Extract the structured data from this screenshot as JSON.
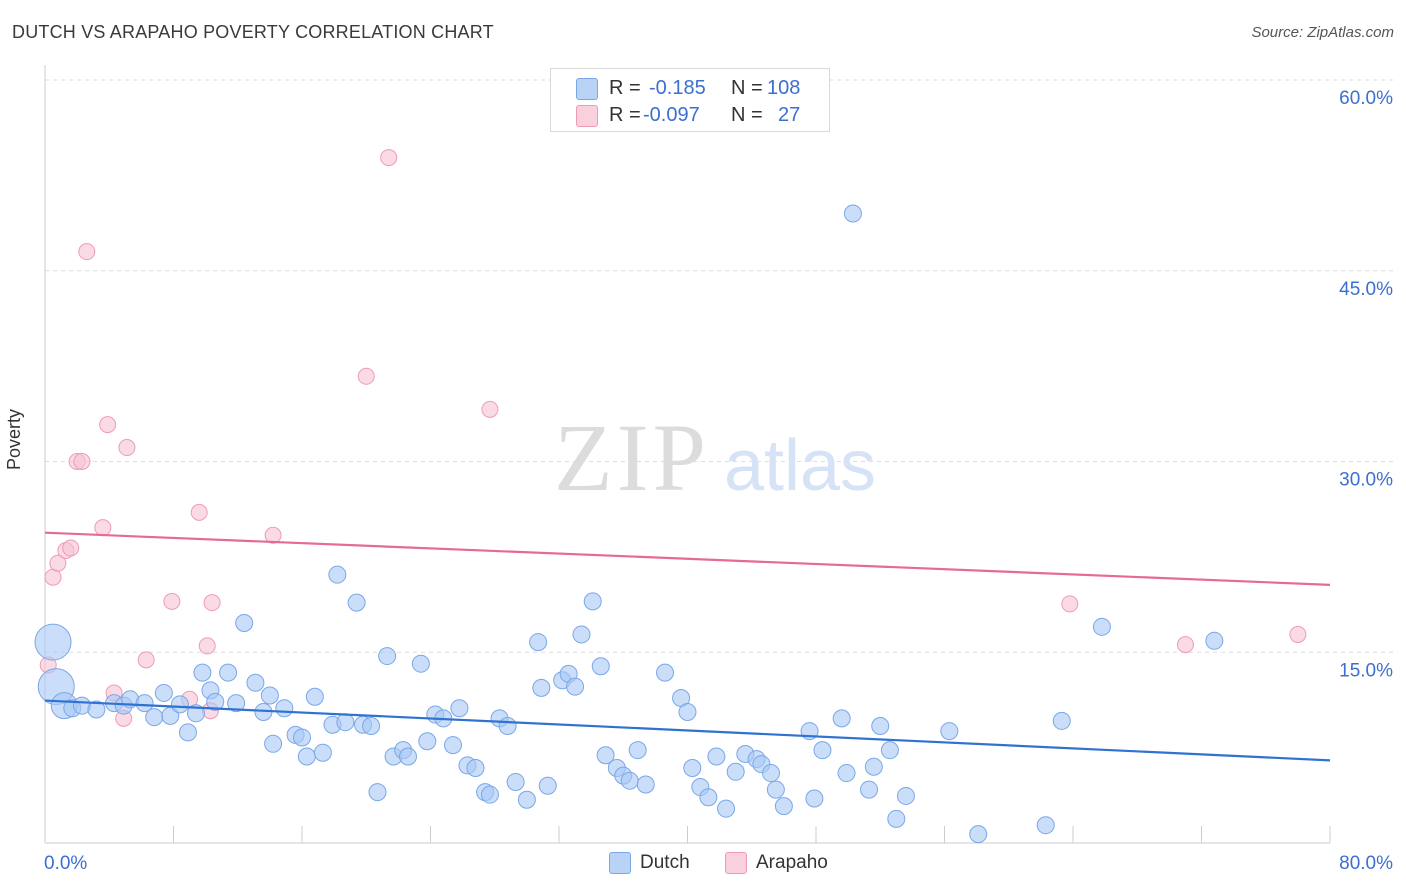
{
  "title": "DUTCH VS ARAPAHO POVERTY CORRELATION CHART",
  "source": "Source: ZipAtlas.com",
  "watermark": {
    "zip": "ZIP",
    "atlas": "atlas"
  },
  "colors": {
    "dutch_fill": "#a9c8f5",
    "dutch_stroke": "#7aa7e8",
    "dutch_line": "#2f72d0",
    "arapaho_fill": "#f7c3d3",
    "arapaho_stroke": "#ef9bb5",
    "arapaho_line": "#e56b93",
    "tick_label": "#3b6fd1",
    "grid": "#dddddd"
  },
  "legend": {
    "dutch": {
      "r_label": "R =",
      "r_value": "-0.185",
      "n_label": "N =",
      "n_value": "108"
    },
    "arapaho": {
      "r_label": "R =",
      "r_value": "-0.097",
      "n_label": "N =",
      "n_value": "27"
    }
  },
  "bottom_legend": {
    "dutch": "Dutch",
    "arapaho": "Arapaho"
  },
  "chart_data": {
    "type": "scatter",
    "title": "DUTCH VS ARAPAHO POVERTY CORRELATION CHART",
    "xlabel": "",
    "ylabel": "Poverty",
    "xlim": [
      0,
      80
    ],
    "ylim": [
      0,
      60
    ],
    "x_tick_labels": [
      "0.0%",
      "80.0%"
    ],
    "y_ticks": [
      15,
      30,
      45,
      60
    ],
    "y_tick_labels": [
      "15.0%",
      "30.0%",
      "45.0%",
      "60.0%"
    ],
    "grid": "horizontal dashed",
    "legend_position": "top-center",
    "series": [
      {
        "name": "Dutch",
        "trend": {
          "x": [
            0,
            80
          ],
          "y": [
            11.2,
            6.5
          ]
        },
        "points": [
          {
            "x": 0.5,
            "y": 15.8,
            "s": 3
          },
          {
            "x": 0.7,
            "y": 12.3,
            "s": 3
          },
          {
            "x": 1.2,
            "y": 10.8,
            "s": 2
          },
          {
            "x": 1.7,
            "y": 10.6,
            "s": 1
          },
          {
            "x": 2.3,
            "y": 10.8,
            "s": 1
          },
          {
            "x": 3.2,
            "y": 10.5,
            "s": 1
          },
          {
            "x": 4.3,
            "y": 11.0,
            "s": 1
          },
          {
            "x": 4.9,
            "y": 10.8,
            "s": 1
          },
          {
            "x": 5.3,
            "y": 11.3,
            "s": 1
          },
          {
            "x": 6.2,
            "y": 11.0,
            "s": 1
          },
          {
            "x": 6.8,
            "y": 9.9,
            "s": 1
          },
          {
            "x": 7.4,
            "y": 11.8,
            "s": 1
          },
          {
            "x": 7.8,
            "y": 10.0,
            "s": 1
          },
          {
            "x": 8.4,
            "y": 10.9,
            "s": 1
          },
          {
            "x": 8.9,
            "y": 8.7,
            "s": 1
          },
          {
            "x": 9.4,
            "y": 10.2,
            "s": 1
          },
          {
            "x": 9.8,
            "y": 13.4,
            "s": 1
          },
          {
            "x": 10.3,
            "y": 12.0,
            "s": 1
          },
          {
            "x": 10.6,
            "y": 11.1,
            "s": 1
          },
          {
            "x": 11.4,
            "y": 13.4,
            "s": 1
          },
          {
            "x": 11.9,
            "y": 11.0,
            "s": 1
          },
          {
            "x": 12.4,
            "y": 17.3,
            "s": 1
          },
          {
            "x": 13.1,
            "y": 12.6,
            "s": 1
          },
          {
            "x": 13.6,
            "y": 10.3,
            "s": 1
          },
          {
            "x": 14.0,
            "y": 11.6,
            "s": 1
          },
          {
            "x": 14.2,
            "y": 7.8,
            "s": 1
          },
          {
            "x": 14.9,
            "y": 10.6,
            "s": 1
          },
          {
            "x": 15.6,
            "y": 8.5,
            "s": 1
          },
          {
            "x": 16.0,
            "y": 8.3,
            "s": 1
          },
          {
            "x": 16.3,
            "y": 6.8,
            "s": 1
          },
          {
            "x": 16.8,
            "y": 11.5,
            "s": 1
          },
          {
            "x": 17.3,
            "y": 7.1,
            "s": 1
          },
          {
            "x": 17.9,
            "y": 9.3,
            "s": 1
          },
          {
            "x": 18.2,
            "y": 21.1,
            "s": 1
          },
          {
            "x": 18.7,
            "y": 9.5,
            "s": 1
          },
          {
            "x": 19.4,
            "y": 18.9,
            "s": 1
          },
          {
            "x": 19.8,
            "y": 9.3,
            "s": 1
          },
          {
            "x": 20.3,
            "y": 9.2,
            "s": 1
          },
          {
            "x": 20.7,
            "y": 4.0,
            "s": 1
          },
          {
            "x": 21.3,
            "y": 14.7,
            "s": 1
          },
          {
            "x": 21.7,
            "y": 6.8,
            "s": 1
          },
          {
            "x": 22.3,
            "y": 7.3,
            "s": 1
          },
          {
            "x": 22.6,
            "y": 6.8,
            "s": 1
          },
          {
            "x": 23.4,
            "y": 14.1,
            "s": 1
          },
          {
            "x": 23.8,
            "y": 8.0,
            "s": 1
          },
          {
            "x": 24.3,
            "y": 10.1,
            "s": 1
          },
          {
            "x": 24.8,
            "y": 9.8,
            "s": 1
          },
          {
            "x": 25.4,
            "y": 7.7,
            "s": 1
          },
          {
            "x": 25.8,
            "y": 10.6,
            "s": 1
          },
          {
            "x": 26.3,
            "y": 6.1,
            "s": 1
          },
          {
            "x": 26.8,
            "y": 5.9,
            "s": 1
          },
          {
            "x": 27.4,
            "y": 4.0,
            "s": 1
          },
          {
            "x": 27.7,
            "y": 3.8,
            "s": 1
          },
          {
            "x": 28.3,
            "y": 9.8,
            "s": 1
          },
          {
            "x": 28.8,
            "y": 9.2,
            "s": 1
          },
          {
            "x": 29.3,
            "y": 4.8,
            "s": 1
          },
          {
            "x": 30.0,
            "y": 3.4,
            "s": 1
          },
          {
            "x": 30.7,
            "y": 15.8,
            "s": 1
          },
          {
            "x": 30.9,
            "y": 12.2,
            "s": 1
          },
          {
            "x": 31.3,
            "y": 4.5,
            "s": 1
          },
          {
            "x": 32.2,
            "y": 12.8,
            "s": 1
          },
          {
            "x": 32.6,
            "y": 13.3,
            "s": 1
          },
          {
            "x": 33.0,
            "y": 12.3,
            "s": 1
          },
          {
            "x": 33.4,
            "y": 16.4,
            "s": 1
          },
          {
            "x": 34.1,
            "y": 19.0,
            "s": 1
          },
          {
            "x": 34.6,
            "y": 13.9,
            "s": 1
          },
          {
            "x": 34.9,
            "y": 6.9,
            "s": 1
          },
          {
            "x": 35.6,
            "y": 5.9,
            "s": 1
          },
          {
            "x": 36.0,
            "y": 5.3,
            "s": 1
          },
          {
            "x": 36.4,
            "y": 4.9,
            "s": 1
          },
          {
            "x": 36.9,
            "y": 7.3,
            "s": 1
          },
          {
            "x": 37.4,
            "y": 4.6,
            "s": 1
          },
          {
            "x": 38.6,
            "y": 13.4,
            "s": 1
          },
          {
            "x": 39.6,
            "y": 11.4,
            "s": 1
          },
          {
            "x": 40.0,
            "y": 10.3,
            "s": 1
          },
          {
            "x": 40.3,
            "y": 5.9,
            "s": 1
          },
          {
            "x": 40.8,
            "y": 4.4,
            "s": 1
          },
          {
            "x": 41.3,
            "y": 3.6,
            "s": 1
          },
          {
            "x": 41.8,
            "y": 6.8,
            "s": 1
          },
          {
            "x": 42.4,
            "y": 2.7,
            "s": 1
          },
          {
            "x": 43.0,
            "y": 5.6,
            "s": 1
          },
          {
            "x": 43.6,
            "y": 7.0,
            "s": 1
          },
          {
            "x": 44.3,
            "y": 6.6,
            "s": 1
          },
          {
            "x": 44.6,
            "y": 6.2,
            "s": 1
          },
          {
            "x": 45.2,
            "y": 5.5,
            "s": 1
          },
          {
            "x": 45.5,
            "y": 4.2,
            "s": 1
          },
          {
            "x": 46.0,
            "y": 2.9,
            "s": 1
          },
          {
            "x": 47.6,
            "y": 8.8,
            "s": 1
          },
          {
            "x": 47.9,
            "y": 3.5,
            "s": 1
          },
          {
            "x": 48.4,
            "y": 7.3,
            "s": 1
          },
          {
            "x": 49.6,
            "y": 9.8,
            "s": 1
          },
          {
            "x": 49.9,
            "y": 5.5,
            "s": 1
          },
          {
            "x": 50.3,
            "y": 49.5,
            "s": 1
          },
          {
            "x": 51.3,
            "y": 4.2,
            "s": 1
          },
          {
            "x": 51.6,
            "y": 6.0,
            "s": 1
          },
          {
            "x": 52.0,
            "y": 9.2,
            "s": 1
          },
          {
            "x": 52.6,
            "y": 7.3,
            "s": 1
          },
          {
            "x": 53.0,
            "y": 1.9,
            "s": 1
          },
          {
            "x": 53.6,
            "y": 3.7,
            "s": 1
          },
          {
            "x": 56.3,
            "y": 8.8,
            "s": 1
          },
          {
            "x": 58.1,
            "y": 0.7,
            "s": 1
          },
          {
            "x": 62.3,
            "y": 1.4,
            "s": 1
          },
          {
            "x": 63.3,
            "y": 9.6,
            "s": 1
          },
          {
            "x": 65.8,
            "y": 17.0,
            "s": 1
          },
          {
            "x": 72.8,
            "y": 15.9,
            "s": 1
          }
        ]
      },
      {
        "name": "Arapaho",
        "trend": {
          "x": [
            0,
            80
          ],
          "y": [
            24.4,
            20.3
          ]
        },
        "points": [
          {
            "x": 0.2,
            "y": 14.0
          },
          {
            "x": 0.5,
            "y": 20.9
          },
          {
            "x": 0.8,
            "y": 22.0
          },
          {
            "x": 1.3,
            "y": 23.0
          },
          {
            "x": 1.6,
            "y": 23.2
          },
          {
            "x": 2.0,
            "y": 30.0
          },
          {
            "x": 2.3,
            "y": 30.0
          },
          {
            "x": 2.6,
            "y": 46.5
          },
          {
            "x": 3.6,
            "y": 24.8
          },
          {
            "x": 3.9,
            "y": 32.9
          },
          {
            "x": 4.3,
            "y": 11.8
          },
          {
            "x": 4.9,
            "y": 9.8
          },
          {
            "x": 5.1,
            "y": 31.1
          },
          {
            "x": 6.3,
            "y": 14.4
          },
          {
            "x": 7.9,
            "y": 19.0
          },
          {
            "x": 9.0,
            "y": 11.3
          },
          {
            "x": 9.6,
            "y": 26.0
          },
          {
            "x": 10.1,
            "y": 15.5
          },
          {
            "x": 10.3,
            "y": 10.4
          },
          {
            "x": 10.4,
            "y": 18.9
          },
          {
            "x": 14.2,
            "y": 24.2
          },
          {
            "x": 20.0,
            "y": 36.7
          },
          {
            "x": 21.4,
            "y": 53.9
          },
          {
            "x": 27.7,
            "y": 34.1
          },
          {
            "x": 63.8,
            "y": 18.8
          },
          {
            "x": 71.0,
            "y": 15.6
          },
          {
            "x": 78.0,
            "y": 16.4
          }
        ]
      }
    ]
  }
}
